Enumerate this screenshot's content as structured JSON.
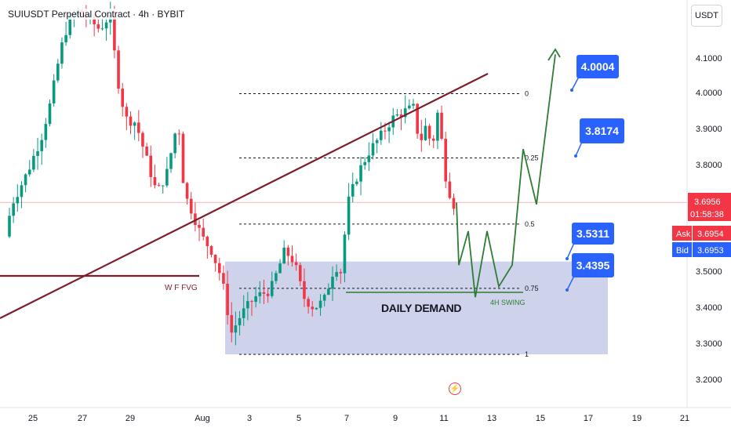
{
  "header": {
    "title": "SUIUSDT Perpetual Contract · 4h · BYBIT",
    "currency_button": "USDT"
  },
  "chart_data": {
    "type": "candlestick",
    "title": "SUIUSDT Perpetual Contract · 4h · BYBIT",
    "x_tick_labels": [
      "25",
      "27",
      "29",
      "Aug",
      "3",
      "5",
      "7",
      "9",
      "11",
      "13",
      "15",
      "17",
      "19",
      "21"
    ],
    "y_tick_labels": [
      "4.1000",
      "4.0000",
      "3.9000",
      "3.8000",
      "3.5000",
      "3.4000",
      "3.3000",
      "3.2000"
    ],
    "ylim": [
      3.18,
      4.24
    ],
    "grid": false,
    "candle_colors": {
      "up": "#089981",
      "down": "#f23645"
    },
    "price_labels": {
      "last": "3.6956",
      "countdown": "01:58:38",
      "ask_label": "Ask",
      "ask": "3.6954",
      "bid_label": "Bid",
      "bid": "3.6953"
    },
    "fib_levels": [
      {
        "label": "0",
        "price": 4.0
      },
      {
        "label": "0.25",
        "price": 3.82
      },
      {
        "label": "0.5",
        "price": 3.635
      },
      {
        "label": "0.75",
        "price": 3.455
      },
      {
        "label": "1",
        "price": 3.27
      }
    ],
    "annotations": [
      {
        "text": "W F FVG",
        "color": "#7a1f2b"
      },
      {
        "text": "DAILY DEMAND",
        "color": "#131722"
      },
      {
        "text": "4H SWING",
        "color": "#2e7d32"
      }
    ],
    "target_labels": [
      "4.0004",
      "3.8174",
      "3.5311",
      "3.4395"
    ],
    "demand_zone": {
      "from": 3.27,
      "to": 3.53
    },
    "projection_path": [
      3.695,
      3.52,
      3.615,
      3.43,
      3.615,
      3.46,
      3.635,
      3.52,
      3.845,
      3.69,
      4.11
    ],
    "colors": {
      "trendline": "#7a1f2b",
      "projection": "#2e7d32",
      "zone": "#c5cbe8",
      "callout": "#2962ff"
    }
  }
}
